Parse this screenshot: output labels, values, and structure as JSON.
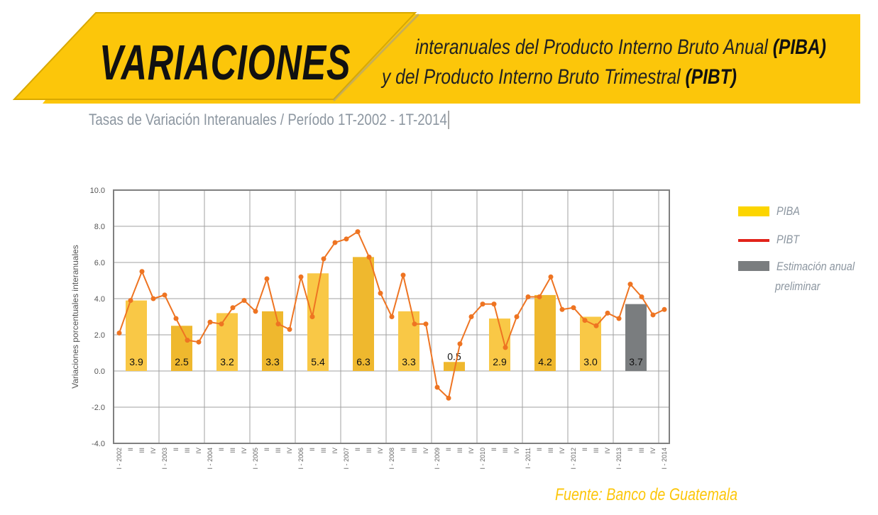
{
  "header": {
    "title": "VARIACIONES",
    "line1": "interanuales del Producto Interno Bruto Anual ",
    "line1_bold": "(PIBA)",
    "line2": "y del Producto Interno Bruto Trimestral ",
    "line2_bold": "(PIBT)",
    "period": "Tasas de Variación Interanuales / Período 1T-2002 - 1T-2014"
  },
  "colors": {
    "banner": "#fcc60a",
    "bar_light": "#f9c846",
    "bar_dark": "#efb82e",
    "estimate": "#7a7d7f",
    "line": "#ee7422"
  },
  "legend": [
    {
      "label": "PIBA",
      "color": "#fcd500"
    },
    {
      "label": "PIBT",
      "color": "#e2231a"
    },
    {
      "label": "Estimación anual",
      "label2": "preliminar",
      "color": "#7a7d7f"
    }
  ],
  "source": "Fuente: Banco de Guatemala",
  "chart_data": {
    "type": "bar+line",
    "ylabel": "Variaciones porcentuales interanuales",
    "ylim": [
      -4,
      10
    ],
    "yticks": [
      "10.0",
      "8.0",
      "6.0",
      "4.0",
      "2.0",
      "0.0",
      "-2.0",
      "-4.0"
    ],
    "grid": true,
    "years": [
      "2002",
      "2003",
      "2004",
      "2005",
      "2006",
      "2007",
      "2008",
      "2009",
      "2010",
      "2011",
      "2012",
      "2013"
    ],
    "piba": [
      3.9,
      2.5,
      3.2,
      3.3,
      5.4,
      6.3,
      3.3,
      0.5,
      2.9,
      4.2,
      3.0,
      3.7
    ],
    "piba_labels": [
      "3.9",
      "2.5",
      "3.2",
      "3.3",
      "5.4",
      "6.3",
      "3.3",
      "0.5",
      "2.9",
      "4.2",
      "3.0",
      "3.7"
    ],
    "estimate_years": [
      "2013"
    ],
    "quarter_labels": [
      "I - 2002",
      "II",
      "III",
      "IV",
      "I - 2003",
      "II",
      "III",
      "IV",
      "I - 2004",
      "II",
      "III",
      "IV",
      "I - 2005",
      "II",
      "III",
      "IV",
      "I - 2006",
      "II",
      "III",
      "IV",
      "I - 2007",
      "II",
      "III",
      "IV",
      "I - 2008",
      "II",
      "III",
      "IV",
      "I - 2009",
      "II",
      "III",
      "IV",
      "I - 2010",
      "II",
      "III",
      "IV",
      "I - 2011",
      "II",
      "III",
      "IV",
      "I - 2012",
      "II",
      "III",
      "IV",
      "I - 2013",
      "II",
      "III",
      "IV",
      "I - 2014"
    ],
    "pibt": [
      2.1,
      3.9,
      5.5,
      4.0,
      4.2,
      2.9,
      1.7,
      1.6,
      2.7,
      2.6,
      3.5,
      3.9,
      3.3,
      5.1,
      2.6,
      2.3,
      5.2,
      3.0,
      6.2,
      7.1,
      7.3,
      7.7,
      6.3,
      4.3,
      3.0,
      5.3,
      2.6,
      2.6,
      -0.9,
      -1.5,
      1.5,
      3.0,
      3.7,
      3.7,
      1.3,
      3.0,
      4.1,
      4.1,
      5.2,
      3.4,
      3.5,
      2.8,
      2.5,
      3.2,
      2.9,
      4.8,
      4.1,
      3.1,
      3.4
    ]
  }
}
